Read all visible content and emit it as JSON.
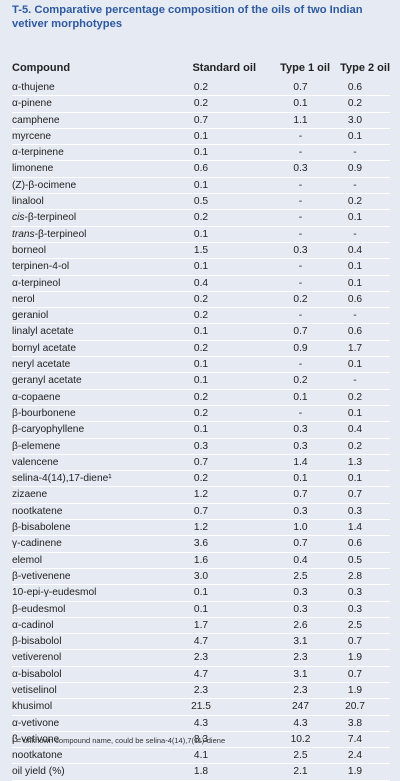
{
  "title": "T-5. Comparative percentage composition of the oils of two Indian vetiver morphotypes",
  "headers": [
    "Compound",
    "Standard oil",
    "Type 1 oil",
    "Type 2 oil"
  ],
  "rows": [
    [
      "α-thujene",
      "0.2",
      "0.7",
      "0.6"
    ],
    [
      "α-pinene",
      "0.2",
      "0.1",
      "0.2"
    ],
    [
      "camphene",
      "0.7",
      "1.1",
      "3.0"
    ],
    [
      "myrcene",
      "0.1",
      "-",
      "0.1"
    ],
    [
      "α-terpinene",
      "0.1",
      "-",
      "-"
    ],
    [
      "limonene",
      "0.6",
      "0.3",
      "0.9"
    ],
    [
      "(Z)-β-ocimene",
      "0.1",
      "-",
      "-"
    ],
    [
      "linalool",
      "0.5",
      "-",
      "0.2"
    ],
    [
      "cis-β-terpineol",
      "0.2",
      "-",
      "0.1"
    ],
    [
      "trans-β-terpineol",
      "0.1",
      "-",
      "-"
    ],
    [
      "borneol",
      "1.5",
      "0.3",
      "0.4"
    ],
    [
      "terpinen-4-ol",
      "0.1",
      "-",
      "0.1"
    ],
    [
      "α-terpineol",
      "0.4",
      "-",
      "0.1"
    ],
    [
      "nerol",
      "0.2",
      "0.2",
      "0.6"
    ],
    [
      "geraniol",
      "0.2",
      "-",
      "-"
    ],
    [
      "linalyl acetate",
      "0.1",
      "0.7",
      "0.6"
    ],
    [
      "bornyl acetate",
      "0.2",
      "0.9",
      "1.7"
    ],
    [
      "neryl acetate",
      "0.1",
      "-",
      "0.1"
    ],
    [
      "geranyl acetate",
      "0.1",
      "0.2",
      "-"
    ],
    [
      "α-copaene",
      "0.2",
      "0.1",
      "0.2"
    ],
    [
      "β-bourbonene",
      "0.2",
      "-",
      "0.1"
    ],
    [
      "β-caryophyllene",
      "0.1",
      "0.3",
      "0.4"
    ],
    [
      "β-elemene",
      "0.3",
      "0.3",
      "0.2"
    ],
    [
      "valencene",
      "0.7",
      "1.4",
      "1.3"
    ],
    [
      "selina-4(14),17-diene¹",
      "0.2",
      "0.1",
      "0.1"
    ],
    [
      "zizaene",
      "1.2",
      "0.7",
      "0.7"
    ],
    [
      "nootkatene",
      "0.7",
      "0.3",
      "0.3"
    ],
    [
      "β-bisabolene",
      "1.2",
      "1.0",
      "1.4"
    ],
    [
      "γ-cadinene",
      "3.6",
      "0.7",
      "0.6"
    ],
    [
      "elemol",
      "1.6",
      "0.4",
      "0.5"
    ],
    [
      "β-vetivenene",
      "3.0",
      "2.5",
      "2.8"
    ],
    [
      "10-epi-γ-eudesmol",
      "0.1",
      "0.3",
      "0.3"
    ],
    [
      "β-eudesmol",
      "0.1",
      "0.3",
      "0.3"
    ],
    [
      "α-cadinol",
      "1.7",
      "2.6",
      "2.5"
    ],
    [
      "β-bisabolol",
      "4.7",
      "3.1",
      "0.7"
    ],
    [
      "vetiverenol",
      "2.3",
      "2.3",
      "1.9"
    ],
    [
      "α-bisabolol",
      "4.7",
      "3.1",
      "0.7"
    ],
    [
      "vetiselinol",
      "2.3",
      "2.3",
      "1.9"
    ],
    [
      "khusimol",
      "21.5",
      "247",
      "20.7"
    ],
    [
      "α-vetivone",
      "4.3",
      "4.3",
      "3.8"
    ],
    [
      "β-vetivone",
      "8.3",
      "10.2",
      "7.4"
    ],
    [
      "nootkatone",
      "4.1",
      "2.5",
      "2.4"
    ],
    [
      "oil yield (%)",
      "1.8",
      "2.1",
      "1.9"
    ]
  ],
  "footnote": "¹ = unknown compound name, could be selina-4(14),7(11)-diene"
}
